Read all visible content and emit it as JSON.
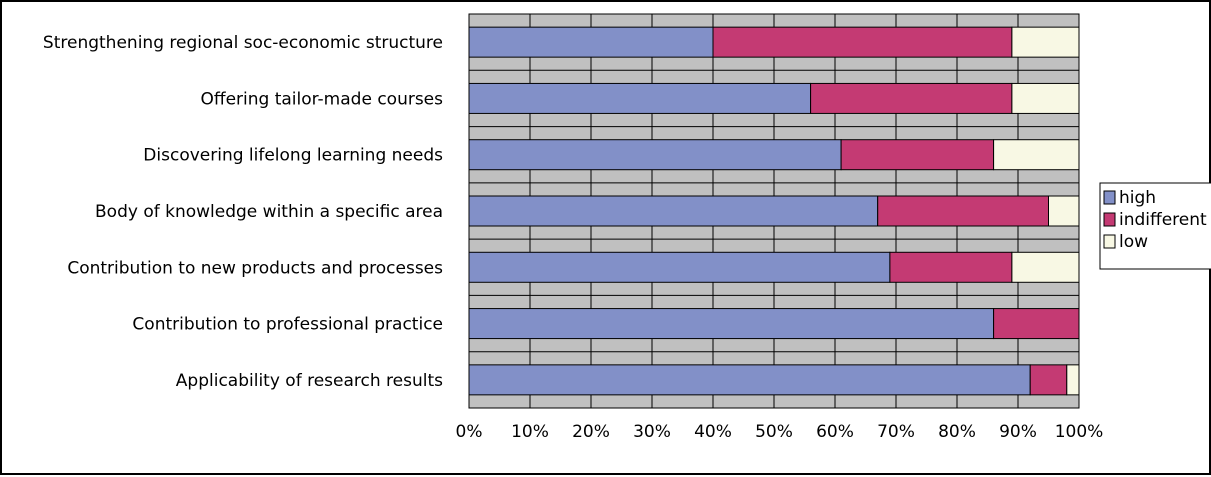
{
  "chart_data": {
    "type": "bar",
    "orientation": "horizontal",
    "stacked": true,
    "percent": true,
    "categories": [
      "Strengthening regional soc-economic structure",
      "Offering tailor-made courses",
      "Discovering lifelong learning needs",
      "Body of knowledge within a specific area",
      "Contribution to new products and processes",
      "Contribution to professional practice",
      "Applicability of research results"
    ],
    "series": [
      {
        "name": "high",
        "color": "#8290C8",
        "values": [
          40,
          56,
          61,
          67,
          69,
          86,
          92
        ]
      },
      {
        "name": "indifferent",
        "color": "#C43A73",
        "values": [
          49,
          33,
          25,
          28,
          20,
          14,
          6
        ]
      },
      {
        "name": "low",
        "color": "#F8F8E4",
        "values": [
          11,
          11,
          14,
          5,
          11,
          0,
          2
        ]
      }
    ],
    "xlim": [
      0,
      100
    ],
    "x_ticks": [
      "0%",
      "10%",
      "20%",
      "30%",
      "40%",
      "50%",
      "60%",
      "70%",
      "80%",
      "90%",
      "100%"
    ],
    "grid": true,
    "plot_background": "#C0C0C0",
    "legend_position": "right"
  }
}
